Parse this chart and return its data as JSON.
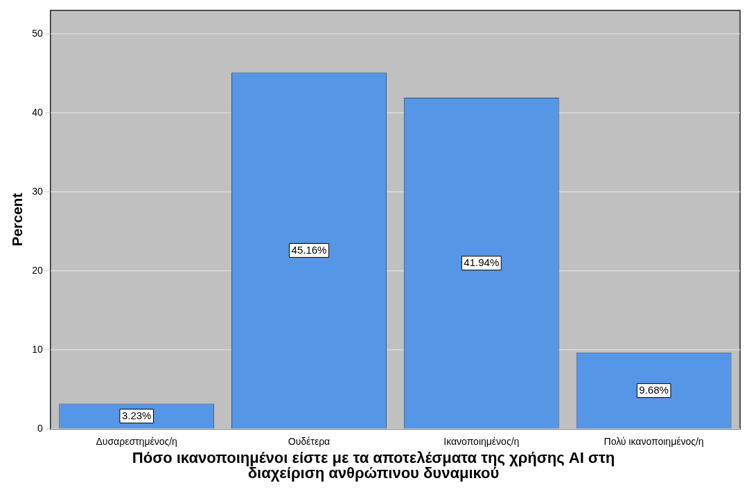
{
  "chart_data": {
    "type": "bar",
    "xlabel": "Πόσο ικανοποιημένοι είστε με τα αποτελέσματα της χρήσης AI στη διαχείριση ανθρώπινου δυναμικού",
    "ylabel": "Percent",
    "categories": [
      "Δυσαρεστημένος/η",
      "Ουδέτερα",
      "Ικανοποιημένος/η",
      "Πολύ ικανοποιημένος/η"
    ],
    "values": [
      3.23,
      45.16,
      41.94,
      9.68
    ],
    "value_labels": [
      "3.23%",
      "45.16%",
      "41.94%",
      "9.68%"
    ],
    "color": "#5596e6",
    "ylim": [
      0,
      53
    ],
    "yticks": [
      0,
      10,
      20,
      30,
      40,
      50
    ],
    "grid": "y"
  }
}
